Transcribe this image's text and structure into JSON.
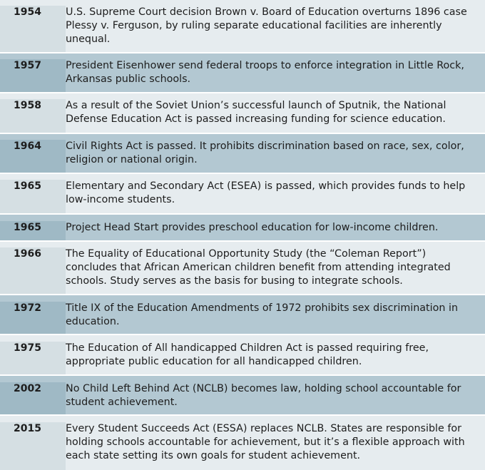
{
  "events": [
    {
      "year": "1954",
      "text": "U.S. Supreme Court decision Brown v. Board of Education overturns 1896 case Plessy v. Ferguson, by ruling separate educational facilities are inherently unequal."
    },
    {
      "year": "1957",
      "text": "President Eisenhower send federal troops to enforce integration in Little Rock, Arkansas public schools."
    },
    {
      "year": "1958",
      "text": "As a result of the Soviet Union’s successful launch of Sputnik, the National Defense Education Act is passed increasing funding for science education."
    },
    {
      "year": "1964",
      "text": "Civil Rights Act is passed.  It prohibits discrimination based on race, sex, color, religion or national origin."
    },
    {
      "year": "1965",
      "text": "Elementary and Secondary Act (ESEA) is passed, which provides funds to help low-income students."
    },
    {
      "year": "1965",
      "text": "Project Head Start provides preschool education for low-income children."
    },
    {
      "year": "1966",
      "text": "The Equality of Educational Opportunity Study (the “Coleman Report”) concludes that African American children benefit from attending integrated schools.  Study serves as the basis for busing to integrate schools."
    },
    {
      "year": "1972",
      "text": "Title IX of the Education Amendments of 1972 prohibits sex discrimination in education."
    },
    {
      "year": "1975",
      "text": "The Education of All handicapped Children Act is passed requiring free, appropriate public education for all handicapped children."
    },
    {
      "year": "2002",
      "text": "No Child Left Behind Act (NCLB) becomes law, holding school accountable for student achievement."
    },
    {
      "year": "2015",
      "text": "Every Student Succeeds Act (ESSA) replaces NCLB. States are responsible for holding schools accountable for achievement, but it’s a flexible approach with each state setting its own goals for student achievement."
    }
  ]
}
